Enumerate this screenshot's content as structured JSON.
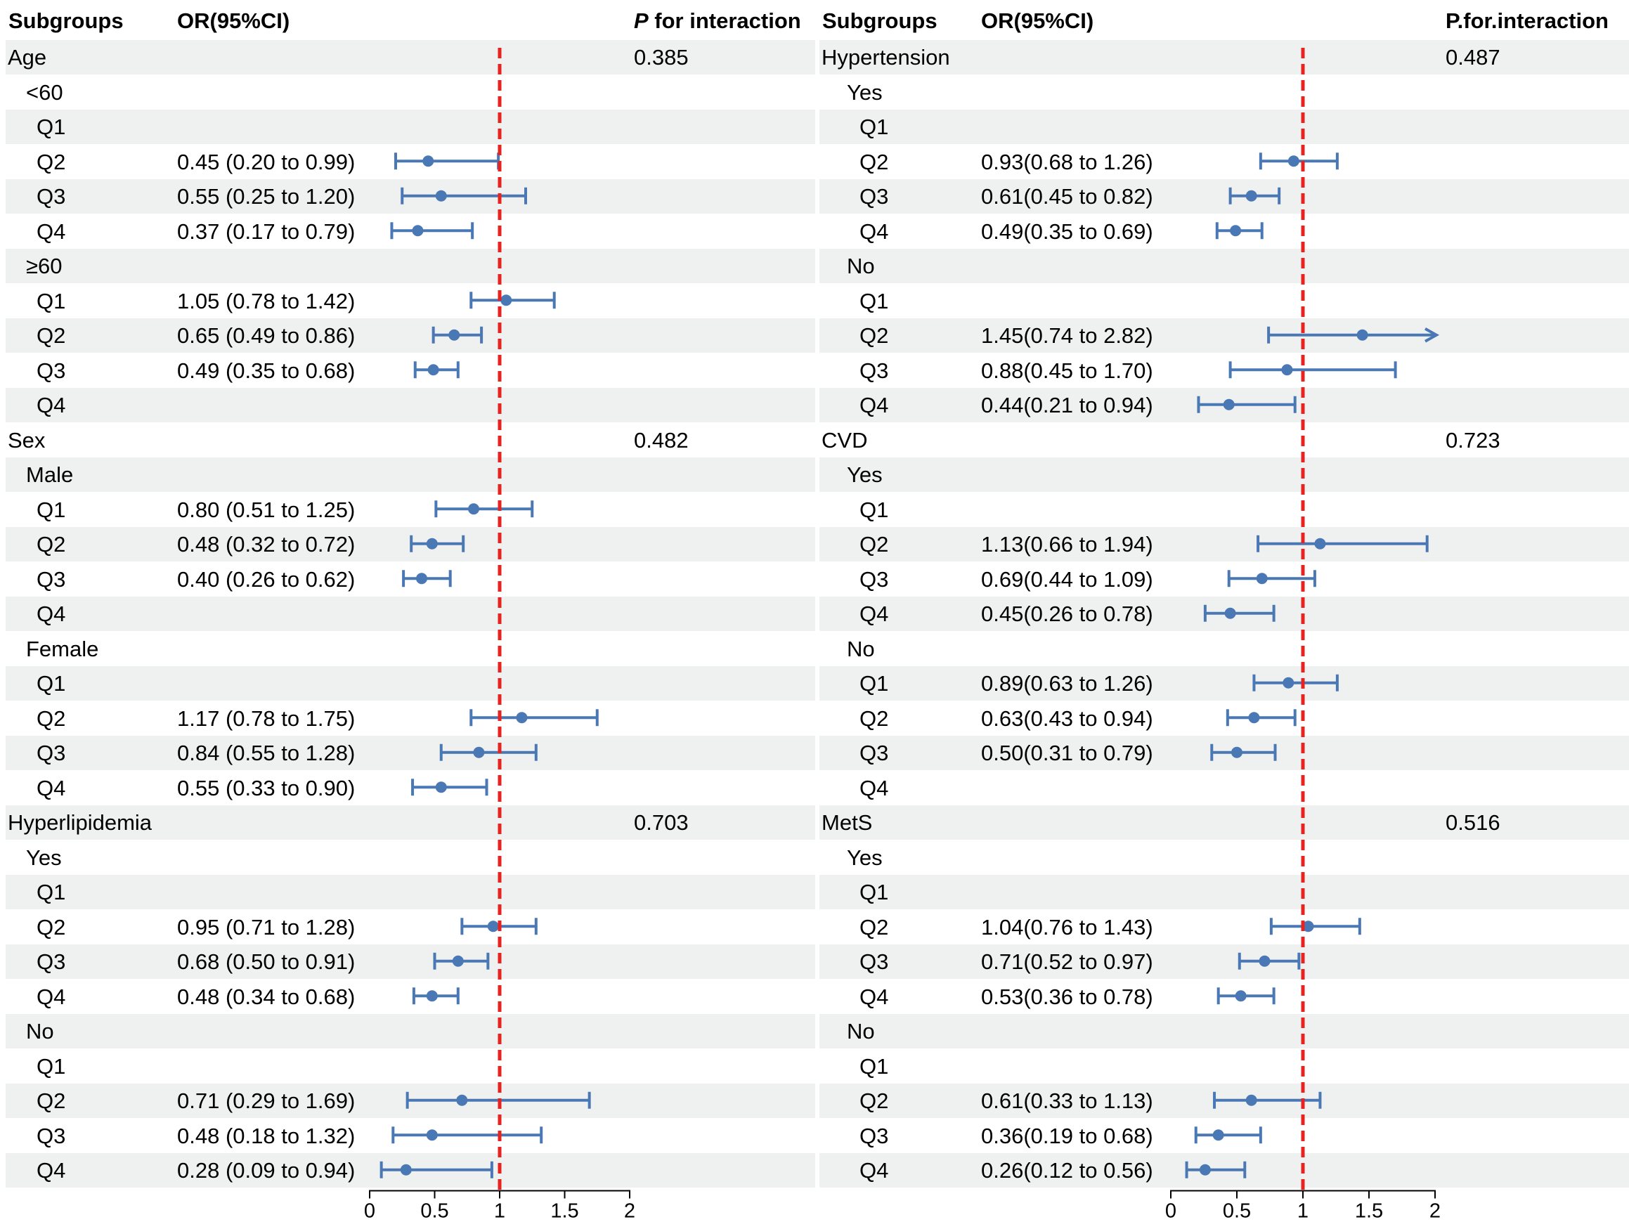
{
  "colors": {
    "stripe": "#eff1f0",
    "ci": "#4a78b5",
    "reference_line": "#e8221f"
  },
  "chart_data": {
    "type": "forest",
    "reference_value": 1,
    "x_ticks": [
      "0",
      "0.5",
      "1",
      "1.5",
      "2"
    ],
    "xlim": [
      0,
      2
    ],
    "panels": [
      {
        "headers": {
          "subgroups": "Subgroups",
          "or": "OR(95%CI)",
          "p_italic": "P",
          "p_rest": " for interaction"
        },
        "rows": [
          {
            "label": "Age",
            "level": 0,
            "or_text": "",
            "p": "0.385",
            "est": null,
            "lo": null,
            "hi": null
          },
          {
            "label": "<60",
            "level": 1,
            "or_text": "",
            "p": "",
            "est": null,
            "lo": null,
            "hi": null
          },
          {
            "label": "Q1",
            "level": 2,
            "or_text": "",
            "p": "",
            "est": null,
            "lo": null,
            "hi": null
          },
          {
            "label": "Q2",
            "level": 2,
            "or_text": "0.45 (0.20 to 0.99)",
            "p": "",
            "est": 0.45,
            "lo": 0.2,
            "hi": 0.99
          },
          {
            "label": "Q3",
            "level": 2,
            "or_text": "0.55 (0.25 to 1.20)",
            "p": "",
            "est": 0.55,
            "lo": 0.25,
            "hi": 1.2
          },
          {
            "label": "Q4",
            "level": 2,
            "or_text": "0.37 (0.17 to 0.79)",
            "p": "",
            "est": 0.37,
            "lo": 0.17,
            "hi": 0.79
          },
          {
            "label": "≥60",
            "level": 1,
            "or_text": "",
            "p": "",
            "est": null,
            "lo": null,
            "hi": null
          },
          {
            "label": "Q1",
            "level": 2,
            "or_text": "1.05 (0.78 to 1.42)",
            "p": "",
            "est": 1.05,
            "lo": 0.78,
            "hi": 1.42
          },
          {
            "label": "Q2",
            "level": 2,
            "or_text": "0.65 (0.49 to 0.86)",
            "p": "",
            "est": 0.65,
            "lo": 0.49,
            "hi": 0.86
          },
          {
            "label": "Q3",
            "level": 2,
            "or_text": "0.49 (0.35 to 0.68)",
            "p": "",
            "est": 0.49,
            "lo": 0.35,
            "hi": 0.68
          },
          {
            "label": "Q4",
            "level": 2,
            "or_text": "",
            "p": "",
            "est": null,
            "lo": null,
            "hi": null
          },
          {
            "label": "Sex",
            "level": 0,
            "or_text": "",
            "p": "0.482",
            "est": null,
            "lo": null,
            "hi": null
          },
          {
            "label": "Male",
            "level": 1,
            "or_text": "",
            "p": "",
            "est": null,
            "lo": null,
            "hi": null
          },
          {
            "label": "Q1",
            "level": 2,
            "or_text": "0.80 (0.51 to 1.25)",
            "p": "",
            "est": 0.8,
            "lo": 0.51,
            "hi": 1.25
          },
          {
            "label": "Q2",
            "level": 2,
            "or_text": "0.48 (0.32 to 0.72)",
            "p": "",
            "est": 0.48,
            "lo": 0.32,
            "hi": 0.72
          },
          {
            "label": "Q3",
            "level": 2,
            "or_text": "0.40 (0.26 to 0.62)",
            "p": "",
            "est": 0.4,
            "lo": 0.26,
            "hi": 0.62
          },
          {
            "label": "Q4",
            "level": 2,
            "or_text": "",
            "p": "",
            "est": null,
            "lo": null,
            "hi": null
          },
          {
            "label": "Female",
            "level": 1,
            "or_text": "",
            "p": "",
            "est": null,
            "lo": null,
            "hi": null
          },
          {
            "label": "Q1",
            "level": 2,
            "or_text": "",
            "p": "",
            "est": null,
            "lo": null,
            "hi": null
          },
          {
            "label": "Q2",
            "level": 2,
            "or_text": "1.17 (0.78 to 1.75)",
            "p": "",
            "est": 1.17,
            "lo": 0.78,
            "hi": 1.75
          },
          {
            "label": "Q3",
            "level": 2,
            "or_text": "0.84 (0.55 to 1.28)",
            "p": "",
            "est": 0.84,
            "lo": 0.55,
            "hi": 1.28
          },
          {
            "label": "Q4",
            "level": 2,
            "or_text": "0.55 (0.33 to 0.90)",
            "p": "",
            "est": 0.55,
            "lo": 0.33,
            "hi": 0.9
          },
          {
            "label": "Hyperlipidemia",
            "level": 0,
            "or_text": "",
            "p": "0.703",
            "est": null,
            "lo": null,
            "hi": null
          },
          {
            "label": "Yes",
            "level": 1,
            "or_text": "",
            "p": "",
            "est": null,
            "lo": null,
            "hi": null
          },
          {
            "label": "Q1",
            "level": 2,
            "or_text": "",
            "p": "",
            "est": null,
            "lo": null,
            "hi": null
          },
          {
            "label": "Q2",
            "level": 2,
            "or_text": "0.95 (0.71 to 1.28)",
            "p": "",
            "est": 0.95,
            "lo": 0.71,
            "hi": 1.28
          },
          {
            "label": "Q3",
            "level": 2,
            "or_text": "0.68 (0.50 to 0.91)",
            "p": "",
            "est": 0.68,
            "lo": 0.5,
            "hi": 0.91
          },
          {
            "label": "Q4",
            "level": 2,
            "or_text": "0.48 (0.34 to 0.68)",
            "p": "",
            "est": 0.48,
            "lo": 0.34,
            "hi": 0.68
          },
          {
            "label": "No",
            "level": 1,
            "or_text": "",
            "p": "",
            "est": null,
            "lo": null,
            "hi": null
          },
          {
            "label": "Q1",
            "level": 2,
            "or_text": "",
            "p": "",
            "est": null,
            "lo": null,
            "hi": null
          },
          {
            "label": "Q2",
            "level": 2,
            "or_text": "0.71 (0.29 to 1.69)",
            "p": "",
            "est": 0.71,
            "lo": 0.29,
            "hi": 1.69
          },
          {
            "label": "Q3",
            "level": 2,
            "or_text": "0.48 (0.18 to 1.32)",
            "p": "",
            "est": 0.48,
            "lo": 0.18,
            "hi": 1.32
          },
          {
            "label": "Q4",
            "level": 2,
            "or_text": "0.28 (0.09 to 0.94)",
            "p": "",
            "est": 0.28,
            "lo": 0.09,
            "hi": 0.94
          }
        ]
      },
      {
        "headers": {
          "subgroups": "Subgroups",
          "or": "OR(95%CI)",
          "p_italic": "",
          "p_rest": "P.for.interaction"
        },
        "rows": [
          {
            "label": "Hypertension",
            "level": 0,
            "or_text": "",
            "p": "0.487",
            "est": null,
            "lo": null,
            "hi": null
          },
          {
            "label": "Yes",
            "level": 1,
            "or_text": "",
            "p": "",
            "est": null,
            "lo": null,
            "hi": null
          },
          {
            "label": "Q1",
            "level": 2,
            "or_text": "",
            "p": "",
            "est": null,
            "lo": null,
            "hi": null
          },
          {
            "label": "Q2",
            "level": 2,
            "or_text": "0.93(0.68 to 1.26)",
            "p": "",
            "est": 0.93,
            "lo": 0.68,
            "hi": 1.26
          },
          {
            "label": "Q3",
            "level": 2,
            "or_text": "0.61(0.45 to 0.82)",
            "p": "",
            "est": 0.61,
            "lo": 0.45,
            "hi": 0.82
          },
          {
            "label": "Q4",
            "level": 2,
            "or_text": "0.49(0.35 to 0.69)",
            "p": "",
            "est": 0.49,
            "lo": 0.35,
            "hi": 0.69
          },
          {
            "label": "No",
            "level": 1,
            "or_text": "",
            "p": "",
            "est": null,
            "lo": null,
            "hi": null
          },
          {
            "label": "Q1",
            "level": 2,
            "or_text": "",
            "p": "",
            "est": null,
            "lo": null,
            "hi": null
          },
          {
            "label": "Q2",
            "level": 2,
            "or_text": "1.45(0.74 to 2.82)",
            "p": "",
            "est": 1.45,
            "lo": 0.74,
            "hi": 2.82
          },
          {
            "label": "Q3",
            "level": 2,
            "or_text": "0.88(0.45 to 1.70)",
            "p": "",
            "est": 0.88,
            "lo": 0.45,
            "hi": 1.7
          },
          {
            "label": "Q4",
            "level": 2,
            "or_text": "0.44(0.21 to 0.94)",
            "p": "",
            "est": 0.44,
            "lo": 0.21,
            "hi": 0.94
          },
          {
            "label": "CVD",
            "level": 0,
            "or_text": "",
            "p": "0.723",
            "est": null,
            "lo": null,
            "hi": null
          },
          {
            "label": "Yes",
            "level": 1,
            "or_text": "",
            "p": "",
            "est": null,
            "lo": null,
            "hi": null
          },
          {
            "label": "Q1",
            "level": 2,
            "or_text": "",
            "p": "",
            "est": null,
            "lo": null,
            "hi": null
          },
          {
            "label": "Q2",
            "level": 2,
            "or_text": "1.13(0.66 to 1.94)",
            "p": "",
            "est": 1.13,
            "lo": 0.66,
            "hi": 1.94
          },
          {
            "label": "Q3",
            "level": 2,
            "or_text": "0.69(0.44 to 1.09)",
            "p": "",
            "est": 0.69,
            "lo": 0.44,
            "hi": 1.09
          },
          {
            "label": "Q4",
            "level": 2,
            "or_text": "0.45(0.26 to 0.78)",
            "p": "",
            "est": 0.45,
            "lo": 0.26,
            "hi": 0.78
          },
          {
            "label": "No",
            "level": 1,
            "or_text": "",
            "p": "",
            "est": null,
            "lo": null,
            "hi": null
          },
          {
            "label": "Q1",
            "level": 2,
            "or_text": "0.89(0.63 to 1.26)",
            "p": "",
            "est": 0.89,
            "lo": 0.63,
            "hi": 1.26
          },
          {
            "label": "Q2",
            "level": 2,
            "or_text": "0.63(0.43 to 0.94)",
            "p": "",
            "est": 0.63,
            "lo": 0.43,
            "hi": 0.94
          },
          {
            "label": "Q3",
            "level": 2,
            "or_text": "0.50(0.31 to 0.79)",
            "p": "",
            "est": 0.5,
            "lo": 0.31,
            "hi": 0.79
          },
          {
            "label": "Q4",
            "level": 2,
            "or_text": "",
            "p": "",
            "est": null,
            "lo": null,
            "hi": null
          },
          {
            "label": "MetS",
            "level": 0,
            "or_text": "",
            "p": "0.516",
            "est": null,
            "lo": null,
            "hi": null
          },
          {
            "label": "Yes",
            "level": 1,
            "or_text": "",
            "p": "",
            "est": null,
            "lo": null,
            "hi": null
          },
          {
            "label": "Q1",
            "level": 2,
            "or_text": "",
            "p": "",
            "est": null,
            "lo": null,
            "hi": null
          },
          {
            "label": "Q2",
            "level": 2,
            "or_text": "1.04(0.76 to 1.43)",
            "p": "",
            "est": 1.04,
            "lo": 0.76,
            "hi": 1.43
          },
          {
            "label": "Q3",
            "level": 2,
            "or_text": "0.71(0.52 to 0.97)",
            "p": "",
            "est": 0.71,
            "lo": 0.52,
            "hi": 0.97
          },
          {
            "label": "Q4",
            "level": 2,
            "or_text": "0.53(0.36 to 0.78)",
            "p": "",
            "est": 0.53,
            "lo": 0.36,
            "hi": 0.78
          },
          {
            "label": "No",
            "level": 1,
            "or_text": "",
            "p": "",
            "est": null,
            "lo": null,
            "hi": null
          },
          {
            "label": "Q1",
            "level": 2,
            "or_text": "",
            "p": "",
            "est": null,
            "lo": null,
            "hi": null
          },
          {
            "label": "Q2",
            "level": 2,
            "or_text": "0.61(0.33 to 1.13)",
            "p": "",
            "est": 0.61,
            "lo": 0.33,
            "hi": 1.13
          },
          {
            "label": "Q3",
            "level": 2,
            "or_text": "0.36(0.19 to 0.68)",
            "p": "",
            "est": 0.36,
            "lo": 0.19,
            "hi": 0.68
          },
          {
            "label": "Q4",
            "level": 2,
            "or_text": "0.26(0.12 to 0.56)",
            "p": "",
            "est": 0.26,
            "lo": 0.12,
            "hi": 0.56
          }
        ]
      }
    ]
  }
}
